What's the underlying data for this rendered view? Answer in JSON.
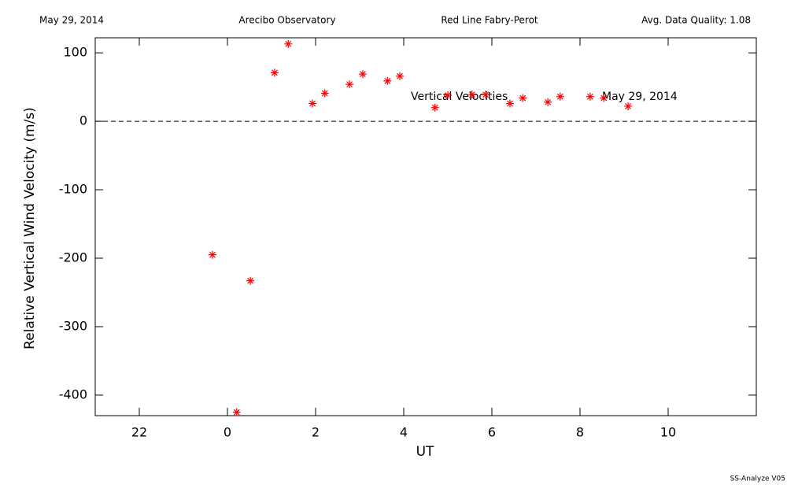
{
  "header": [
    "May 29, 2014",
    "Arecibo Observatory",
    "Red Line Fabry-Perot",
    "Avg. Data Quality: 1.08"
  ],
  "footer": "SS-Analyze V05",
  "chart_data": {
    "type": "scatter",
    "xlabel": "UT",
    "ylabel": "Relative Vertical Wind Velocity (m/s)",
    "annotations": [
      "Vertical Velocities",
      "May 29, 2014"
    ],
    "xlim": [
      -3,
      12
    ],
    "xticks": [
      {
        "value": -2,
        "label": "22"
      },
      0,
      2,
      4,
      6,
      8,
      10
    ],
    "ylim": [
      -430,
      122
    ],
    "yticks": [
      100,
      0,
      -100,
      -200,
      -300,
      -400
    ],
    "reference_line": 0,
    "series": [
      {
        "name": "Vertical Velocities",
        "color": "#ff0000",
        "x": [
          -0.34,
          0.21,
          0.52,
          1.07,
          1.38,
          1.93,
          2.21,
          2.77,
          3.07,
          3.63,
          3.91,
          4.71,
          5.0,
          5.55,
          5.86,
          6.41,
          6.7,
          7.27,
          7.55,
          8.23,
          8.54,
          9.09
        ],
        "values": [
          -195,
          -425,
          -233,
          71,
          113,
          26,
          41,
          54,
          69,
          59,
          66,
          20,
          38,
          39,
          39,
          26,
          34,
          28,
          36,
          36,
          34,
          22
        ]
      }
    ]
  }
}
